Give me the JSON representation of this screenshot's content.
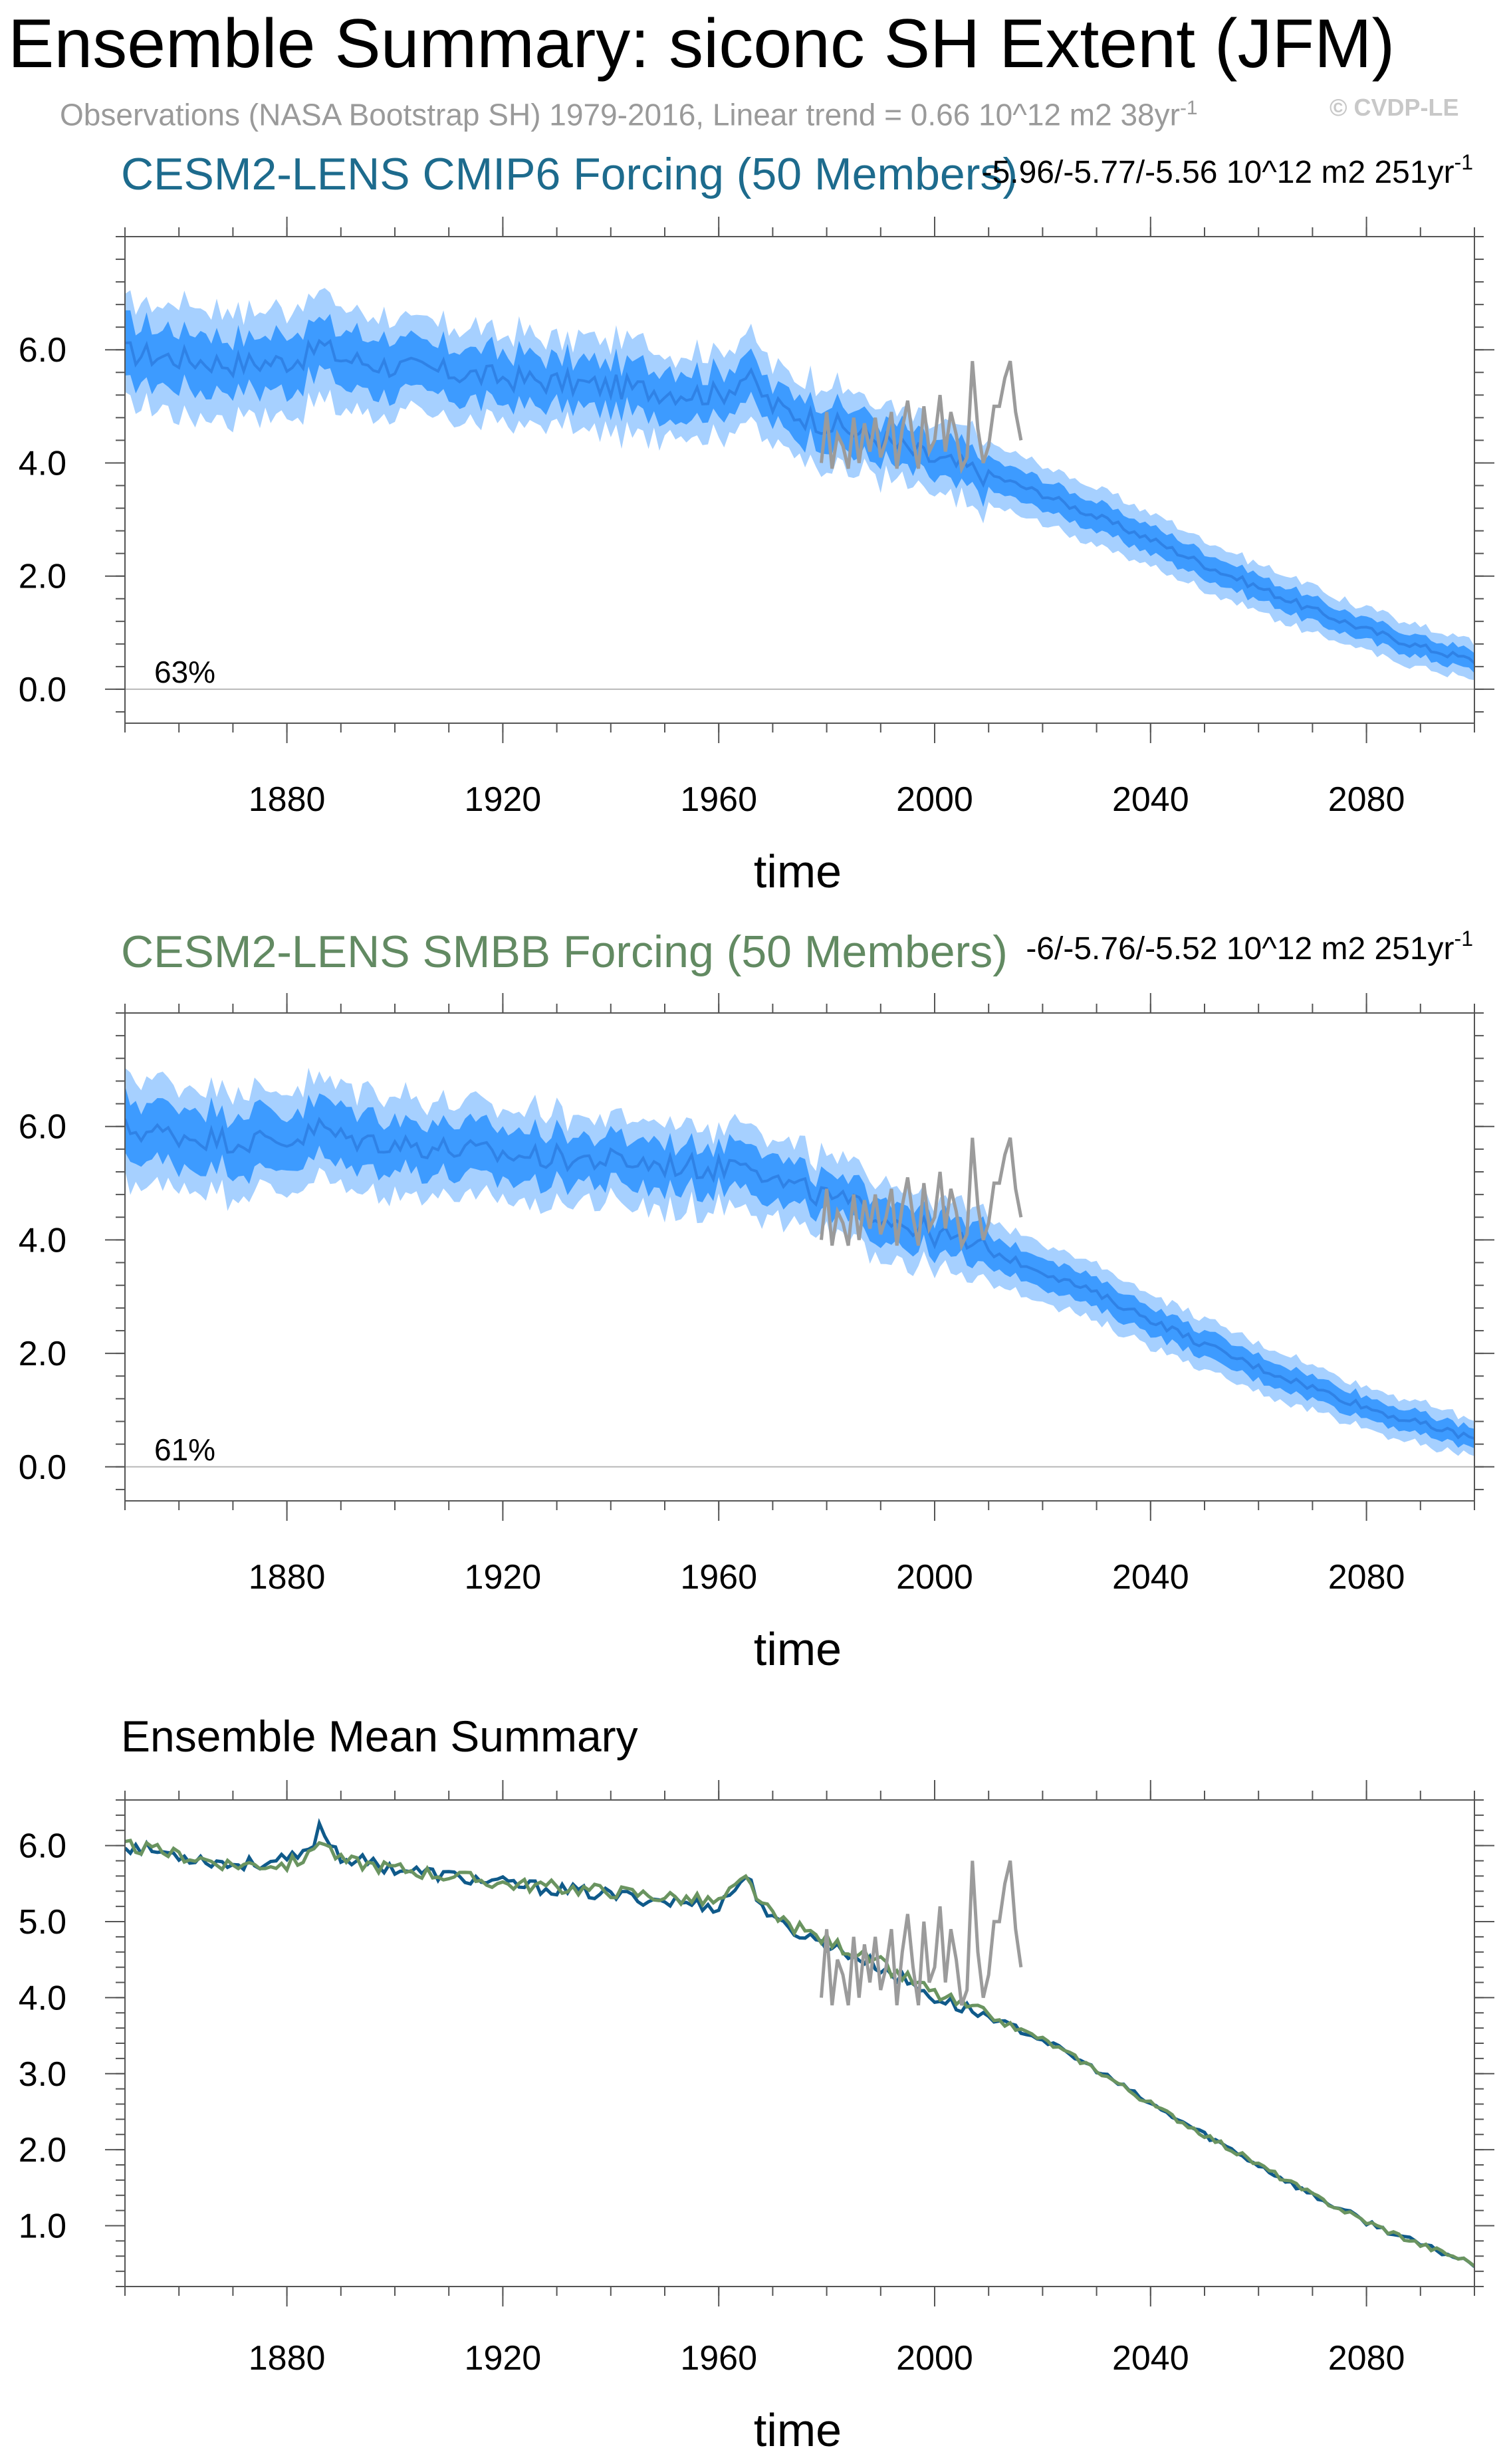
{
  "figure": {
    "title": "Ensemble Summary: siconc SH Extent (JFM)",
    "subtitle": "Observations (NASA Bootstrap SH) 1979-2016, Linear trend = 0.66 10^12 m2 38yr",
    "subtitle_sup": "-1",
    "watermark": "© CVDP-LE"
  },
  "colors": {
    "cmip6_title": "#1d6b8d",
    "smbb_title": "#628a62",
    "band_outer": "#a6d0ff",
    "band_inner": "#3d9bff",
    "mean_line": "#2f82e6",
    "obs": "#9b9b9b",
    "cmip6_mean": "#0f5a8a",
    "smbb_mean": "#6a9460"
  },
  "chart_data": [
    {
      "type": "area",
      "title": "CESM2-LENS CMIP6 Forcing (50 Members)",
      "trend_text": "-5.96/-5.77/-5.56 10^12 m2 251yr",
      "trend_sup": "-1",
      "xlabel": "time",
      "ylabel": "",
      "xlim": [
        1850,
        2100
      ],
      "ylim": [
        -0.6,
        8.0
      ],
      "xticks": [
        1880,
        1920,
        1960,
        2000,
        2040,
        2080
      ],
      "xtick_labels": [
        "1880",
        "1920",
        "1960",
        "2000",
        "2040",
        "2080"
      ],
      "yticks": [
        0,
        2,
        4,
        6
      ],
      "ytick_labels": [
        "0.0",
        "2.0",
        "4.0",
        "6.0"
      ],
      "percent_label": "63%",
      "ensemble_mean_knots": {
        "x": [
          1850,
          1870,
          1880,
          1884,
          1886,
          1890,
          1900,
          1920,
          1940,
          1960,
          1965,
          1970,
          1980,
          1990,
          2000,
          2010,
          2020,
          2030,
          2040,
          2050,
          2060,
          2070,
          2080,
          2090,
          2100
        ],
        "y": [
          5.95,
          5.75,
          5.8,
          5.9,
          6.1,
          5.85,
          5.7,
          5.5,
          5.35,
          5.2,
          5.55,
          5.0,
          4.7,
          4.4,
          4.05,
          3.8,
          3.45,
          3.05,
          2.65,
          2.2,
          1.8,
          1.4,
          1.05,
          0.75,
          0.5
        ]
      },
      "inner_halfwidth": [
        0.45,
        0.15
      ],
      "outer_halfwidth": [
        0.85,
        0.3
      ],
      "observations": {
        "x": [
          1979,
          1980,
          1981,
          1982,
          1983,
          1984,
          1985,
          1986,
          1987,
          1988,
          1989,
          1990,
          1991,
          1992,
          1993,
          1994,
          1995,
          1996,
          1997,
          1998,
          1999,
          2000,
          2001,
          2002,
          2003,
          2004,
          2005,
          2006,
          2007,
          2008,
          2009,
          2010,
          2011,
          2012,
          2013,
          2014,
          2015,
          2016
        ],
        "y": [
          4.0,
          4.9,
          3.9,
          4.5,
          4.3,
          3.9,
          4.8,
          4.0,
          4.7,
          4.2,
          4.8,
          4.1,
          4.4,
          4.9,
          3.9,
          4.6,
          5.1,
          4.4,
          3.9,
          5.0,
          4.2,
          4.4,
          5.2,
          4.2,
          4.9,
          4.5,
          3.9,
          4.1,
          5.8,
          4.6,
          4.0,
          4.3,
          5.0,
          5.0,
          5.5,
          5.8,
          4.9,
          4.4
        ]
      }
    },
    {
      "type": "area",
      "title": "CESM2-LENS SMBB Forcing (50 Members)",
      "trend_text": "-6/-5.76/-5.52 10^12 m2 251yr",
      "trend_sup": "-1",
      "xlabel": "time",
      "ylabel": "",
      "xlim": [
        1850,
        2100
      ],
      "ylim": [
        -0.6,
        8.0
      ],
      "xticks": [
        1880,
        1920,
        1960,
        2000,
        2040,
        2080
      ],
      "xtick_labels": [
        "1880",
        "1920",
        "1960",
        "2000",
        "2040",
        "2080"
      ],
      "yticks": [
        0,
        2,
        4,
        6
      ],
      "ytick_labels": [
        "0.0",
        "2.0",
        "4.0",
        "6.0"
      ],
      "percent_label": "61%",
      "ensemble_mean_knots": {
        "x": [
          1850,
          1870,
          1880,
          1884,
          1886,
          1890,
          1900,
          1920,
          1940,
          1960,
          1965,
          1970,
          1980,
          1990,
          2000,
          2010,
          2020,
          2030,
          2040,
          2050,
          2060,
          2070,
          2080,
          2090,
          2100
        ],
        "y": [
          5.95,
          5.75,
          5.75,
          5.85,
          6.0,
          5.8,
          5.7,
          5.5,
          5.4,
          5.25,
          5.5,
          5.05,
          4.75,
          4.45,
          4.1,
          3.8,
          3.45,
          3.05,
          2.6,
          2.15,
          1.75,
          1.4,
          1.05,
          0.75,
          0.5
        ]
      },
      "inner_halfwidth": [
        0.45,
        0.15
      ],
      "outer_halfwidth": [
        0.85,
        0.3
      ],
      "observations": {
        "x": [
          1979,
          1980,
          1981,
          1982,
          1983,
          1984,
          1985,
          1986,
          1987,
          1988,
          1989,
          1990,
          1991,
          1992,
          1993,
          1994,
          1995,
          1996,
          1997,
          1998,
          1999,
          2000,
          2001,
          2002,
          2003,
          2004,
          2005,
          2006,
          2007,
          2008,
          2009,
          2010,
          2011,
          2012,
          2013,
          2014,
          2015,
          2016
        ],
        "y": [
          4.0,
          4.9,
          3.9,
          4.5,
          4.3,
          3.9,
          4.8,
          4.0,
          4.7,
          4.2,
          4.8,
          4.1,
          4.4,
          4.9,
          3.9,
          4.6,
          5.1,
          4.4,
          3.9,
          5.0,
          4.2,
          4.4,
          5.2,
          4.2,
          4.9,
          4.5,
          3.9,
          4.1,
          5.8,
          4.6,
          4.0,
          4.3,
          5.0,
          5.0,
          5.5,
          5.8,
          4.9,
          4.4
        ]
      }
    },
    {
      "type": "line",
      "title": "Ensemble Mean Summary",
      "xlabel": "time",
      "ylabel": "",
      "xlim": [
        1850,
        2100
      ],
      "ylim": [
        0.2,
        6.6
      ],
      "xticks": [
        1880,
        1920,
        1960,
        2000,
        2040,
        2080
      ],
      "xtick_labels": [
        "1880",
        "1920",
        "1960",
        "2000",
        "2040",
        "2080"
      ],
      "yticks": [
        1,
        2,
        3,
        4,
        5,
        6
      ],
      "ytick_labels": [
        "1.0",
        "2.0",
        "3.0",
        "4.0",
        "5.0",
        "6.0"
      ],
      "series": [
        {
          "name": "CESM2-LENS CMIP6 Forcing",
          "color_key": "cmip6_mean",
          "knots": {
            "x": [
              1850,
              1870,
              1880,
              1884,
              1886,
              1890,
              1900,
              1920,
              1940,
              1960,
              1965,
              1970,
              1980,
              1990,
              2000,
              2010,
              2020,
              2030,
              2040,
              2050,
              2060,
              2070,
              2080,
              2090,
              2100
            ],
            "y": [
              6.0,
              5.75,
              5.8,
              5.9,
              6.25,
              5.85,
              5.7,
              5.5,
              5.35,
              5.2,
              5.6,
              5.0,
              4.7,
              4.4,
              4.0,
              3.75,
              3.45,
              3.05,
              2.6,
              2.2,
              1.8,
              1.4,
              1.05,
              0.75,
              0.5
            ]
          }
        },
        {
          "name": "CESM2-LENS SMBB Forcing",
          "color_key": "smbb_mean",
          "knots": {
            "x": [
              1850,
              1870,
              1880,
              1884,
              1886,
              1890,
              1900,
              1920,
              1940,
              1960,
              1965,
              1970,
              1980,
              1990,
              2000,
              2010,
              2020,
              2030,
              2040,
              2050,
              2060,
              2070,
              2080,
              2090,
              2100
            ],
            "y": [
              6.0,
              5.75,
              5.75,
              5.85,
              6.1,
              5.8,
              5.7,
              5.5,
              5.4,
              5.25,
              5.55,
              5.05,
              4.75,
              4.45,
              4.05,
              3.75,
              3.45,
              3.05,
              2.6,
              2.2,
              1.8,
              1.4,
              1.05,
              0.75,
              0.5
            ]
          }
        }
      ],
      "observations": {
        "x": [
          1979,
          1980,
          1981,
          1982,
          1983,
          1984,
          1985,
          1986,
          1987,
          1988,
          1989,
          1990,
          1991,
          1992,
          1993,
          1994,
          1995,
          1996,
          1997,
          1998,
          1999,
          2000,
          2001,
          2002,
          2003,
          2004,
          2005,
          2006,
          2007,
          2008,
          2009,
          2010,
          2011,
          2012,
          2013,
          2014,
          2015,
          2016
        ],
        "y": [
          4.0,
          4.9,
          3.9,
          4.5,
          4.3,
          3.9,
          4.8,
          4.0,
          4.7,
          4.2,
          4.8,
          4.1,
          4.4,
          4.9,
          3.9,
          4.6,
          5.1,
          4.4,
          3.9,
          5.0,
          4.2,
          4.4,
          5.2,
          4.2,
          4.9,
          4.5,
          3.9,
          4.1,
          5.8,
          4.6,
          4.0,
          4.3,
          5.0,
          5.0,
          5.5,
          5.8,
          4.9,
          4.4
        ]
      }
    }
  ]
}
